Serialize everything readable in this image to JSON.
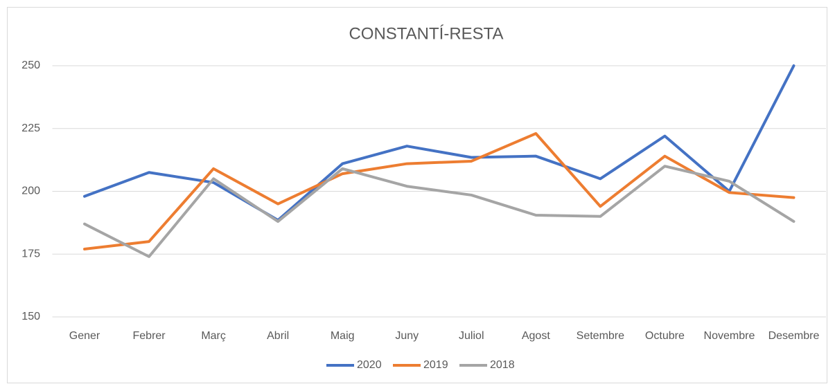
{
  "chart_data": {
    "type": "line",
    "title": "CONSTANTÍ-RESTA",
    "categories": [
      "Gener",
      "Febrer",
      "Març",
      "Abril",
      "Maig",
      "Juny",
      "Juliol",
      "Agost",
      "Setembre",
      "Octubre",
      "Novembre",
      "Desembre"
    ],
    "series": [
      {
        "name": "2020",
        "color": "#4472c4",
        "values": [
          198,
          207.5,
          203.5,
          188.5,
          211,
          218,
          213.5,
          214,
          205,
          222,
          200,
          250
        ]
      },
      {
        "name": "2019",
        "color": "#ed7d31",
        "values": [
          177,
          180,
          209,
          195,
          207,
          211,
          212,
          223,
          194,
          214,
          199.5,
          197.5
        ]
      },
      {
        "name": "2018",
        "color": "#a5a5a5",
        "values": [
          187,
          174,
          205,
          188,
          209,
          202,
          198.5,
          190.5,
          190,
          210,
          204,
          188
        ]
      }
    ],
    "ylim": [
      150,
      250
    ],
    "yticks": [
      150,
      175,
      200,
      225,
      250
    ],
    "grid": true,
    "legend": "bottom"
  }
}
